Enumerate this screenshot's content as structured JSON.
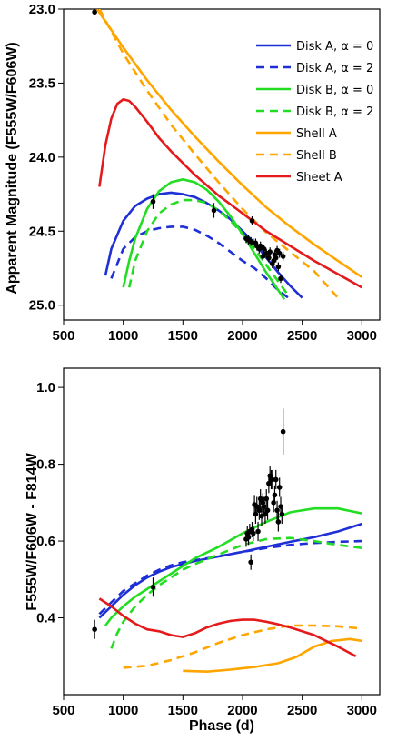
{
  "chart_data": [
    {
      "type": "line",
      "title": "",
      "xlabel": "",
      "ylabel": "Apparent Magnitude (F555W/F606W)",
      "xlim": [
        500,
        3150
      ],
      "ylim": [
        23.0,
        25.1
      ],
      "y_inverted": true,
      "xticks": [
        500,
        1000,
        1500,
        2000,
        2500,
        3000
      ],
      "yticks": [
        23.0,
        23.5,
        24.0,
        24.5,
        25.0
      ],
      "xtick_labels": [
        "500",
        "1000",
        "1500",
        "2000",
        "2500",
        "3000"
      ],
      "ytick_labels": [
        "23.0",
        "23.5",
        "24.0",
        "24.5",
        "25.0"
      ],
      "legend_position": "top-right",
      "series": [
        {
          "name": "Disk A, α  = 0",
          "color": "#1f2fd6",
          "dash": "solid",
          "x": [
            850,
            900,
            1000,
            1100,
            1200,
            1300,
            1400,
            1500,
            1600,
            1700,
            1800,
            1900,
            2000,
            2100,
            2200,
            2300,
            2400,
            2500
          ],
          "y": [
            24.8,
            24.62,
            24.43,
            24.33,
            24.28,
            24.25,
            24.24,
            24.25,
            24.27,
            24.31,
            24.36,
            24.42,
            24.5,
            24.58,
            24.68,
            24.78,
            24.87,
            24.95
          ]
        },
        {
          "name": "Disk A, α  = 2",
          "color": "#1f2fd6",
          "dash": "dash",
          "x": [
            900,
            1000,
            1100,
            1200,
            1300,
            1400,
            1500,
            1600,
            1700,
            1800,
            1900,
            2000,
            2100,
            2200,
            2300,
            2400
          ],
          "y": [
            24.82,
            24.62,
            24.54,
            24.5,
            24.48,
            24.47,
            24.47,
            24.49,
            24.53,
            24.58,
            24.64,
            24.7,
            24.75,
            24.82,
            24.9,
            24.96
          ]
        },
        {
          "name": "Disk B, α  = 0",
          "color": "#22dd22",
          "dash": "solid",
          "x": [
            1000,
            1050,
            1100,
            1200,
            1300,
            1400,
            1500,
            1600,
            1700,
            1800,
            1900,
            2000,
            2100,
            2200,
            2300,
            2350
          ],
          "y": [
            24.88,
            24.7,
            24.55,
            24.35,
            24.23,
            24.17,
            24.15,
            24.17,
            24.22,
            24.3,
            24.4,
            24.52,
            24.65,
            24.78,
            24.9,
            24.96
          ]
        },
        {
          "name": "Disk B, α  = 2",
          "color": "#22dd22",
          "dash": "dash",
          "x": [
            1050,
            1100,
            1200,
            1300,
            1400,
            1500,
            1600,
            1700,
            1800,
            1900,
            2000,
            2100,
            2200,
            2300,
            2380
          ],
          "y": [
            24.88,
            24.7,
            24.5,
            24.38,
            24.32,
            24.29,
            24.29,
            24.31,
            24.36,
            24.43,
            24.52,
            24.62,
            24.73,
            24.84,
            24.93
          ]
        },
        {
          "name": "Shell A",
          "color": "#ffa500",
          "dash": "solid",
          "x": [
            780,
            1000,
            1200,
            1400,
            1600,
            1800,
            2000,
            2200,
            2400,
            2600,
            2800,
            3000
          ],
          "y": [
            23.0,
            23.26,
            23.48,
            23.68,
            23.86,
            24.03,
            24.19,
            24.34,
            24.47,
            24.59,
            24.7,
            24.81
          ]
        },
        {
          "name": "Shell B",
          "color": "#ffa500",
          "dash": "dash",
          "x": [
            800,
            1000,
            1200,
            1400,
            1600,
            1800,
            2000,
            2200,
            2400,
            2600,
            2700,
            2800
          ],
          "y": [
            23.0,
            23.3,
            23.55,
            23.78,
            23.98,
            24.17,
            24.35,
            24.51,
            24.64,
            24.77,
            24.86,
            24.95
          ]
        },
        {
          "name": "Sheet A",
          "color": "#e41a1c",
          "dash": "solid",
          "x": [
            800,
            850,
            900,
            950,
            1000,
            1050,
            1100,
            1200,
            1300,
            1400,
            1600,
            1800,
            2000,
            2200,
            2400,
            2600,
            2800,
            3000
          ],
          "y": [
            24.2,
            23.92,
            23.74,
            23.64,
            23.61,
            23.62,
            23.66,
            23.76,
            23.87,
            23.96,
            24.12,
            24.26,
            24.38,
            24.5,
            24.6,
            24.7,
            24.79,
            24.88
          ]
        }
      ],
      "observations": {
        "x": [
          760,
          1250,
          1760,
          2030,
          2050,
          2070,
          2080,
          2090,
          2110,
          2120,
          2140,
          2150,
          2170,
          2180,
          2200,
          2220,
          2230,
          2250,
          2260,
          2270,
          2280,
          2290,
          2300,
          2310,
          2320,
          2340
        ],
        "y": [
          23.02,
          24.3,
          24.36,
          24.55,
          24.56,
          24.57,
          24.43,
          24.58,
          24.58,
          24.6,
          24.62,
          24.6,
          24.67,
          24.62,
          24.65,
          24.68,
          24.64,
          24.72,
          24.7,
          24.66,
          24.68,
          24.63,
          24.74,
          24.65,
          24.82,
          24.67
        ],
        "yerr": [
          0.02,
          0.05,
          0.05,
          0.03,
          0.03,
          0.03,
          0.03,
          0.03,
          0.03,
          0.03,
          0.03,
          0.03,
          0.03,
          0.03,
          0.03,
          0.03,
          0.03,
          0.03,
          0.03,
          0.03,
          0.03,
          0.03,
          0.03,
          0.03,
          0.03,
          0.03
        ]
      }
    },
    {
      "type": "line",
      "title": "",
      "xlabel": "Phase (d)",
      "ylabel": "F555W/F606W - F814W",
      "xlim": [
        500,
        3150
      ],
      "ylim": [
        0.2,
        1.05
      ],
      "xticks": [
        500,
        1000,
        1500,
        2000,
        2500,
        3000
      ],
      "yticks": [
        0.4,
        0.6,
        0.8,
        1.0
      ],
      "xtick_labels": [
        "500",
        "1000",
        "1500",
        "2000",
        "2500",
        "3000"
      ],
      "ytick_labels": [
        "0.4",
        "0.6",
        "0.8",
        "1.0"
      ],
      "series": [
        {
          "name": "Disk A, α  = 0",
          "color": "#1f2fd6",
          "dash": "solid",
          "x": [
            800,
            900,
            1000,
            1100,
            1200,
            1300,
            1400,
            1500,
            1600,
            1800,
            2000,
            2200,
            2400,
            2600,
            2800,
            3000
          ],
          "y": [
            0.4,
            0.43,
            0.46,
            0.485,
            0.505,
            0.52,
            0.532,
            0.54,
            0.548,
            0.56,
            0.572,
            0.585,
            0.598,
            0.61,
            0.625,
            0.645
          ]
        },
        {
          "name": "Disk A, α  = 2",
          "color": "#1f2fd6",
          "dash": "dash",
          "x": [
            800,
            900,
            1000,
            1100,
            1200,
            1300,
            1400,
            1500,
            1600,
            1800,
            2000,
            2200,
            2400,
            2600,
            2800,
            3000
          ],
          "y": [
            0.41,
            0.44,
            0.47,
            0.49,
            0.51,
            0.525,
            0.537,
            0.545,
            0.55,
            0.56,
            0.572,
            0.582,
            0.59,
            0.595,
            0.598,
            0.6
          ]
        },
        {
          "name": "Disk B, α  = 0",
          "color": "#22dd22",
          "dash": "solid",
          "x": [
            850,
            900,
            1000,
            1100,
            1200,
            1300,
            1400,
            1500,
            1600,
            1800,
            2000,
            2200,
            2400,
            2600,
            2800,
            3000
          ],
          "y": [
            0.38,
            0.4,
            0.43,
            0.455,
            0.475,
            0.495,
            0.515,
            0.535,
            0.555,
            0.585,
            0.62,
            0.65,
            0.675,
            0.685,
            0.685,
            0.672
          ]
        },
        {
          "name": "Disk B, α  = 2",
          "color": "#22dd22",
          "dash": "dash",
          "x": [
            900,
            950,
            1000,
            1100,
            1200,
            1300,
            1400,
            1500,
            1600,
            1800,
            2000,
            2200,
            2400,
            2600,
            2800,
            3000
          ],
          "y": [
            0.32,
            0.36,
            0.39,
            0.43,
            0.46,
            0.485,
            0.505,
            0.525,
            0.54,
            0.565,
            0.59,
            0.605,
            0.608,
            0.6,
            0.59,
            0.582
          ]
        },
        {
          "name": "Shell A",
          "color": "#ffa500",
          "dash": "solid",
          "x": [
            1500,
            1700,
            1900,
            2100,
            2300,
            2450,
            2600,
            2750,
            2900,
            3000
          ],
          "y": [
            0.262,
            0.26,
            0.265,
            0.272,
            0.282,
            0.298,
            0.325,
            0.34,
            0.345,
            0.34
          ]
        },
        {
          "name": "Shell B",
          "color": "#ffa500",
          "dash": "dash",
          "x": [
            1000,
            1200,
            1400,
            1600,
            1800,
            2000,
            2200,
            2400,
            2600,
            2800,
            3000
          ],
          "y": [
            0.27,
            0.275,
            0.29,
            0.31,
            0.335,
            0.355,
            0.37,
            0.38,
            0.38,
            0.378,
            0.372
          ]
        },
        {
          "name": "Sheet A",
          "color": "#e41a1c",
          "dash": "solid",
          "x": [
            800,
            900,
            1000,
            1100,
            1200,
            1300,
            1400,
            1500,
            1600,
            1700,
            1800,
            1900,
            2000,
            2100,
            2200,
            2300,
            2400,
            2500,
            2600,
            2700,
            2800,
            2950
          ],
          "y": [
            0.45,
            0.43,
            0.405,
            0.385,
            0.37,
            0.365,
            0.355,
            0.35,
            0.36,
            0.375,
            0.385,
            0.392,
            0.395,
            0.395,
            0.39,
            0.383,
            0.375,
            0.365,
            0.355,
            0.34,
            0.325,
            0.3
          ]
        }
      ],
      "observations": {
        "x": [
          760,
          1250,
          2030,
          2040,
          2050,
          2060,
          2070,
          2080,
          2090,
          2100,
          2110,
          2120,
          2130,
          2140,
          2150,
          2160,
          2170,
          2180,
          2190,
          2200,
          2210,
          2220,
          2230,
          2240,
          2250,
          2260,
          2270,
          2280,
          2290,
          2300,
          2310,
          2320,
          2330,
          2340
        ],
        "y": [
          0.37,
          0.48,
          0.605,
          0.62,
          0.61,
          0.625,
          0.545,
          0.63,
          0.62,
          0.695,
          0.67,
          0.69,
          0.625,
          0.68,
          0.71,
          0.665,
          0.7,
          0.69,
          0.67,
          0.71,
          0.68,
          0.75,
          0.77,
          0.76,
          0.76,
          0.7,
          0.72,
          0.76,
          0.68,
          0.65,
          0.74,
          0.69,
          0.67,
          0.885
        ],
        "yerr": [
          0.025,
          0.025,
          0.02,
          0.02,
          0.02,
          0.02,
          0.02,
          0.02,
          0.02,
          0.025,
          0.025,
          0.025,
          0.025,
          0.025,
          0.025,
          0.025,
          0.025,
          0.025,
          0.025,
          0.025,
          0.025,
          0.025,
          0.025,
          0.025,
          0.025,
          0.025,
          0.025,
          0.025,
          0.025,
          0.025,
          0.025,
          0.025,
          0.025,
          0.06
        ]
      }
    }
  ]
}
